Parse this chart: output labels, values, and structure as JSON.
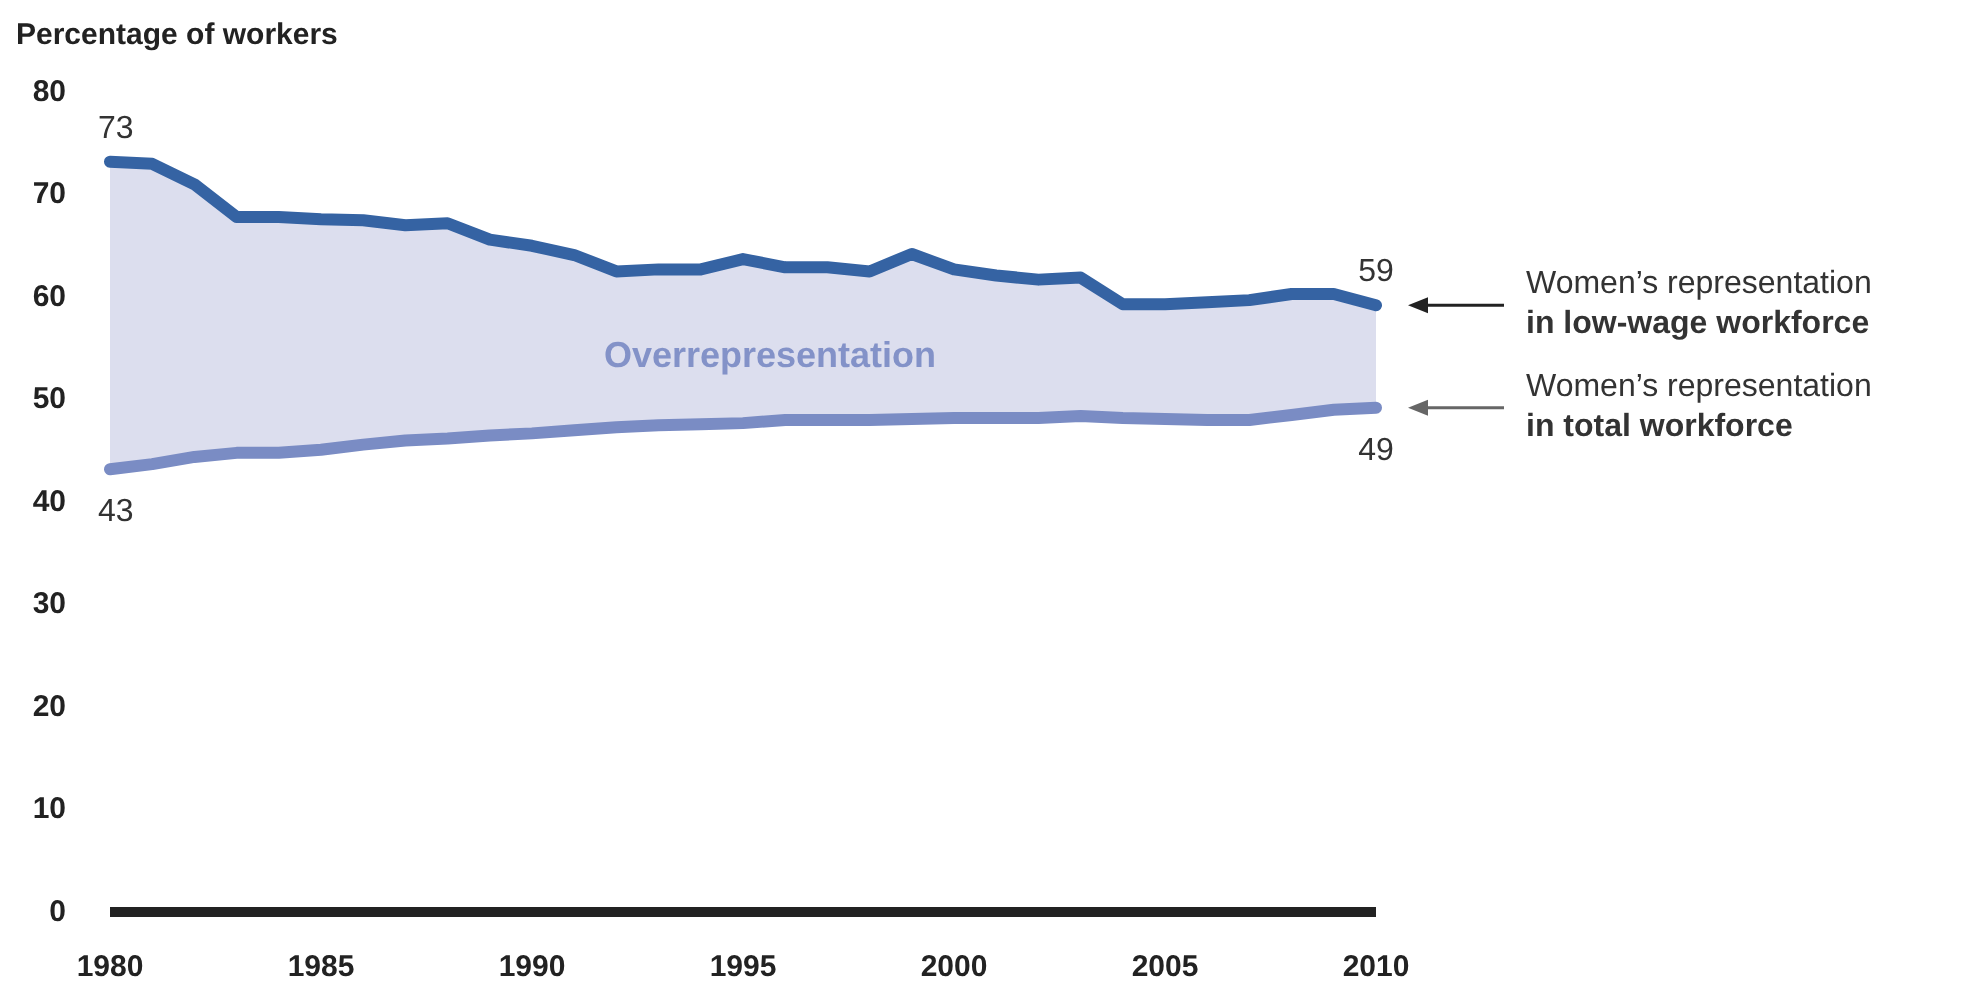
{
  "chart_data": {
    "type": "line",
    "ylabel": "Percentage of workers",
    "x": [
      1980,
      1981,
      1982,
      1983,
      1984,
      1985,
      1986,
      1987,
      1988,
      1989,
      1990,
      1991,
      1992,
      1993,
      1994,
      1995,
      1996,
      1997,
      1998,
      1999,
      2000,
      2001,
      2002,
      2003,
      2004,
      2005,
      2006,
      2007,
      2008,
      2009,
      2010
    ],
    "series": [
      {
        "name": "Women’s representation in low-wage workforce",
        "color": "#3563a3",
        "values": [
          73,
          72.8,
          70.8,
          67.6,
          67.6,
          67.4,
          67.3,
          66.8,
          67,
          65.4,
          64.8,
          63.9,
          62.3,
          62.5,
          62.5,
          63.5,
          62.7,
          62.7,
          62.3,
          64,
          62.5,
          61.9,
          61.5,
          61.7,
          59.1,
          59.1,
          59.3,
          59.5,
          60.1,
          60.1,
          59
        ],
        "lower": [
          43,
          43.5,
          44.2,
          44.6,
          44.6,
          44.9,
          45.4,
          45.8,
          46,
          46.3,
          46.5,
          46.8,
          47.1,
          47.3,
          47.4,
          47.5,
          47.8,
          47.8,
          47.8,
          47.9,
          48,
          48,
          48,
          48.2,
          48,
          47.9,
          47.8,
          47.8,
          48.3,
          48.8,
          49
        ],
        "upper": [
          73,
          72.8,
          70.8,
          67.6,
          67.6,
          67.4,
          67.3,
          66.8,
          67,
          65.4,
          64.8,
          63.9,
          62.3,
          62.5,
          62.5,
          63.5,
          62.7,
          62.7,
          62.3,
          64,
          62.5,
          61.9,
          61.5,
          61.7,
          59.1,
          59.1,
          59.3,
          59.5,
          60.1,
          60.1,
          59
        ],
        "value_labels": [
          "73",
          null,
          null,
          null,
          null,
          null,
          null,
          null,
          null,
          null,
          null,
          null,
          null,
          null,
          null,
          null,
          null,
          null,
          null,
          null,
          null,
          null,
          null,
          null,
          null,
          null,
          null,
          null,
          null,
          null,
          "59"
        ]
      },
      {
        "name": "Women’s representation in total workforce",
        "color": "#7a8cc4",
        "values": [
          43,
          43.5,
          44.2,
          44.6,
          44.6,
          44.9,
          45.4,
          45.8,
          46,
          46.3,
          46.5,
          46.8,
          47.1,
          47.3,
          47.4,
          47.5,
          47.8,
          47.8,
          47.8,
          47.9,
          48,
          48,
          48,
          48.2,
          48,
          47.9,
          47.8,
          47.8,
          48.3,
          48.8,
          49
        ],
        "value_labels": [
          "43",
          null,
          null,
          null,
          null,
          null,
          null,
          null,
          null,
          null,
          null,
          null,
          null,
          null,
          null,
          null,
          null,
          null,
          null,
          null,
          null,
          null,
          null,
          null,
          null,
          null,
          null,
          null,
          null,
          null,
          "49"
        ]
      }
    ],
    "annotations": [
      "Overrepresentation"
    ],
    "xlim": [
      1980,
      2010
    ],
    "xticks": [
      1980,
      1985,
      1990,
      1995,
      2000,
      2005,
      2010
    ],
    "ylim": [
      0,
      80
    ],
    "yticks": [
      0,
      10,
      20,
      30,
      40,
      50,
      60,
      70,
      80
    ],
    "grid": false,
    "legend": false,
    "marker": "none",
    "line_style": "solid"
  }
}
